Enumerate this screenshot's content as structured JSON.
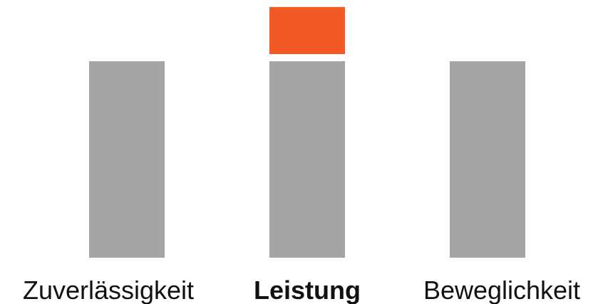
{
  "chart_data": {
    "type": "bar",
    "stacked": true,
    "categories": [
      "Zuverlässigkeit",
      "Leistung",
      "Beweglichkeit"
    ],
    "highlighted_category": "Leistung",
    "series": [
      {
        "values": [
          1.0,
          1.0,
          1.0
        ],
        "color": "#a5a5a5"
      },
      {
        "values": [
          0,
          0.24,
          0
        ],
        "color": "#f15a24"
      }
    ],
    "ylim": [
      0,
      1.3
    ],
    "grid": false,
    "axes_visible": false,
    "legend": "none",
    "title": "",
    "xlabel": "",
    "ylabel": ""
  }
}
